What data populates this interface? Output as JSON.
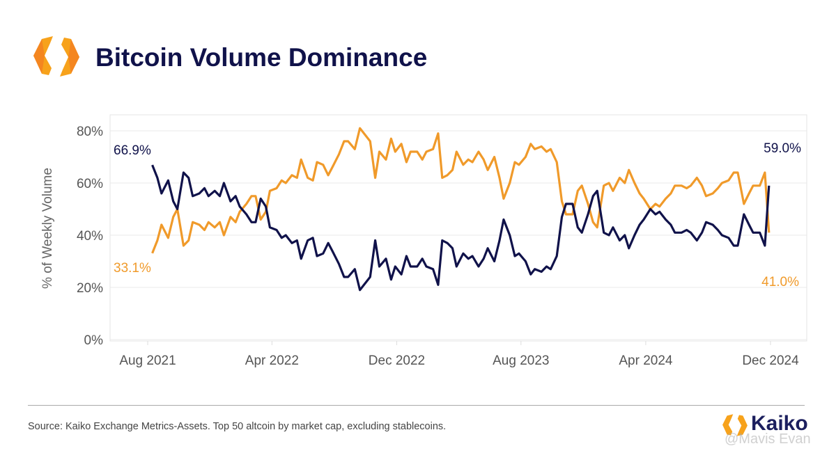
{
  "title": "Bitcoin Volume Dominance",
  "source": "Source: Kaiko Exchange Metrics-Assets. Top 50 altcoin by market cap, excluding stablecoins.",
  "brand": {
    "name": "Kaiko",
    "watermark": "@Mavis Evan"
  },
  "colors": {
    "btc": "#10124a",
    "alt": "#f09a2a",
    "title": "#10124a",
    "grid": "#e8e8e8"
  },
  "chart_data": {
    "type": "line",
    "title": "Bitcoin Volume Dominance",
    "xlabel": "",
    "ylabel": "% of Weekly Volume",
    "ylim": [
      0,
      80
    ],
    "yticks": [
      "0%",
      "20%",
      "40%",
      "60%",
      "80%"
    ],
    "ytick_values": [
      0,
      20,
      40,
      60,
      80
    ],
    "xticks": [
      "Aug 2021",
      "Apr 2022",
      "Dec 2022",
      "Aug 2023",
      "Apr 2024",
      "Dec 2024"
    ],
    "xtick_dates": [
      "2021-08-01",
      "2022-04-01",
      "2022-12-01",
      "2023-08-01",
      "2024-04-01",
      "2024-12-01"
    ],
    "grid": true,
    "legend": "none",
    "annotations": {
      "btc_start": "66.9%",
      "alt_start": "33.1%",
      "btc_end": "59.0%",
      "alt_end": "41.0%"
    },
    "x": [
      "2021-08-10",
      "2021-08-20",
      "2021-08-28",
      "2021-09-10",
      "2021-09-20",
      "2021-09-28",
      "2021-10-10",
      "2021-10-20",
      "2021-10-28",
      "2021-11-10",
      "2021-11-20",
      "2021-11-28",
      "2021-12-10",
      "2021-12-20",
      "2021-12-28",
      "2022-01-10",
      "2022-01-20",
      "2022-01-28",
      "2022-02-10",
      "2022-02-20",
      "2022-02-28",
      "2022-03-10",
      "2022-03-20",
      "2022-03-28",
      "2022-04-10",
      "2022-04-20",
      "2022-04-28",
      "2022-05-10",
      "2022-05-20",
      "2022-05-28",
      "2022-06-10",
      "2022-06-20",
      "2022-06-28",
      "2022-07-10",
      "2022-07-20",
      "2022-07-28",
      "2022-08-10",
      "2022-08-20",
      "2022-08-28",
      "2022-09-10",
      "2022-09-20",
      "2022-09-28",
      "2022-10-10",
      "2022-10-20",
      "2022-10-28",
      "2022-11-10",
      "2022-11-20",
      "2022-11-28",
      "2022-12-10",
      "2022-12-20",
      "2022-12-28",
      "2023-01-10",
      "2023-01-20",
      "2023-01-28",
      "2023-02-10",
      "2023-02-20",
      "2023-02-28",
      "2023-03-10",
      "2023-03-20",
      "2023-03-28",
      "2023-04-10",
      "2023-04-20",
      "2023-04-28",
      "2023-05-10",
      "2023-05-20",
      "2023-05-28",
      "2023-06-10",
      "2023-06-20",
      "2023-06-28",
      "2023-07-10",
      "2023-07-20",
      "2023-07-28",
      "2023-08-10",
      "2023-08-20",
      "2023-08-28",
      "2023-09-10",
      "2023-09-20",
      "2023-09-28",
      "2023-10-10",
      "2023-10-20",
      "2023-10-28",
      "2023-11-10",
      "2023-11-20",
      "2023-11-28",
      "2023-12-10",
      "2023-12-20",
      "2023-12-28",
      "2024-01-10",
      "2024-01-20",
      "2024-01-28",
      "2024-02-10",
      "2024-02-20",
      "2024-02-28",
      "2024-03-10",
      "2024-03-20",
      "2024-03-28",
      "2024-04-10",
      "2024-04-20",
      "2024-04-28",
      "2024-05-10",
      "2024-05-20",
      "2024-05-28",
      "2024-06-10",
      "2024-06-20",
      "2024-06-28",
      "2024-07-10",
      "2024-07-20",
      "2024-07-28",
      "2024-08-10",
      "2024-08-20",
      "2024-08-28",
      "2024-09-10",
      "2024-09-20",
      "2024-09-28",
      "2024-10-10",
      "2024-10-20",
      "2024-10-28",
      "2024-11-10",
      "2024-11-20",
      "2024-11-28"
    ],
    "series": [
      {
        "key": "btc",
        "values": [
          66.9,
          62,
          56,
          61,
          53,
          50,
          64,
          62,
          55,
          56,
          58,
          55,
          57,
          55,
          60,
          53,
          55,
          51,
          48,
          45,
          45,
          54,
          51,
          43,
          42,
          39,
          40,
          37,
          38,
          31,
          38,
          39,
          32,
          33,
          37,
          34,
          29,
          24,
          24,
          27,
          19,
          21,
          24,
          38,
          28,
          31,
          23,
          28,
          25,
          32,
          28,
          28,
          31,
          28,
          27,
          21,
          38,
          37,
          35,
          28,
          33,
          31,
          32,
          28,
          31,
          35,
          30,
          38,
          46,
          40,
          32,
          33,
          30,
          25,
          27,
          26,
          28,
          27,
          32,
          47,
          52,
          52,
          43,
          41,
          48,
          55,
          57,
          41,
          40,
          43,
          38,
          40,
          35,
          40,
          44,
          46,
          50,
          48,
          49,
          46,
          44,
          41,
          41,
          42,
          41,
          38,
          41,
          45,
          44,
          42,
          40,
          39,
          36,
          36,
          48,
          44,
          41,
          41,
          36,
          59.0
        ]
      },
      {
        "key": "alt",
        "values": [
          33.1,
          38,
          44,
          39,
          47,
          50,
          36,
          38,
          45,
          44,
          42,
          45,
          43,
          45,
          40,
          47,
          45,
          49,
          52,
          55,
          55,
          46,
          49,
          57,
          58,
          61,
          60,
          63,
          62,
          69,
          62,
          61,
          68,
          67,
          63,
          66,
          71,
          76,
          76,
          73,
          81,
          79,
          76,
          62,
          72,
          69,
          77,
          72,
          75,
          68,
          72,
          72,
          69,
          72,
          73,
          79,
          62,
          63,
          65,
          72,
          67,
          69,
          68,
          72,
          69,
          65,
          70,
          62,
          54,
          60,
          68,
          67,
          70,
          75,
          73,
          74,
          72,
          73,
          68,
          53,
          48,
          48,
          57,
          59,
          52,
          45,
          43,
          59,
          60,
          57,
          62,
          60,
          65,
          60,
          56,
          54,
          50,
          52,
          51,
          54,
          56,
          59,
          59,
          58,
          59,
          62,
          59,
          55,
          56,
          58,
          60,
          61,
          64,
          64,
          52,
          56,
          59,
          59,
          64,
          41.0
        ]
      }
    ]
  }
}
